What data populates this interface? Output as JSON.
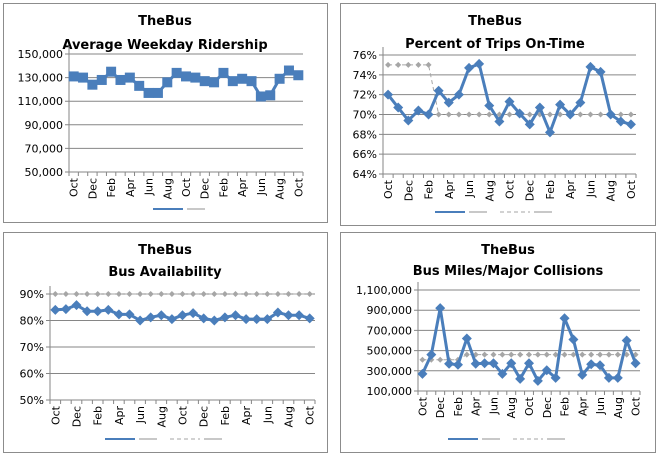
{
  "chart_data": [
    {
      "type": "line",
      "title": [
        "TheBus",
        "Average Weekday Ridership"
      ],
      "x": [
        "Oct",
        "Nov",
        "Dec",
        "Jan",
        "Feb",
        "Mar",
        "Apr",
        "May",
        "Jun",
        "Jul",
        "Aug",
        "Sep",
        "Oct",
        "Nov",
        "Dec",
        "Jan",
        "Feb",
        "Mar",
        "Apr",
        "May",
        "Jun",
        "Jul",
        "Aug",
        "Sep",
        "Oct"
      ],
      "xtick_labels": [
        "Oct",
        "Dec",
        "Feb",
        "Apr",
        "Jun",
        "Aug",
        "Oct",
        "Dec",
        "Feb",
        "Apr",
        "Jun",
        "Aug",
        "Oct"
      ],
      "ylim": [
        50000,
        150000
      ],
      "yticks": [
        50000,
        70000,
        90000,
        110000,
        130000,
        150000
      ],
      "ytick_labels": [
        "50,000",
        "70,000",
        "90,000",
        "110,000",
        "130,000",
        "150,000"
      ],
      "grid": true,
      "legend": "bottom",
      "series": [
        {
          "values": [
            131000,
            130000,
            124000,
            128000,
            135000,
            128000,
            130000,
            123000,
            117000,
            117000,
            126000,
            134000,
            131000,
            130000,
            127000,
            126000,
            134000,
            127000,
            129000,
            127000,
            114000,
            115000,
            129000,
            136000,
            132000
          ],
          "color": "#4a7ebb",
          "marker": "square"
        }
      ]
    },
    {
      "type": "line",
      "title": [
        "TheBus",
        "Percent of Trips On-Time"
      ],
      "x": [
        "Oct",
        "Nov",
        "Dec",
        "Jan",
        "Feb",
        "Mar",
        "Apr",
        "May",
        "Jun",
        "Jul",
        "Aug",
        "Sep",
        "Oct",
        "Nov",
        "Dec",
        "Jan",
        "Feb",
        "Mar",
        "Apr",
        "May",
        "Jun",
        "Jul",
        "Aug",
        "Sep",
        "Oct"
      ],
      "xtick_labels": [
        "Oct",
        "Dec",
        "Feb",
        "Apr",
        "Jun",
        "Aug",
        "Oct",
        "Dec",
        "Feb",
        "Apr",
        "Jun",
        "Aug",
        "Oct"
      ],
      "ylim": [
        64,
        76
      ],
      "yticks": [
        64,
        66,
        68,
        70,
        72,
        74,
        76
      ],
      "ytick_labels": [
        "64%",
        "66%",
        "68%",
        "70%",
        "72%",
        "74%",
        "76%"
      ],
      "grid": true,
      "legend": "bottom",
      "series": [
        {
          "values": [
            72.0,
            70.7,
            69.4,
            70.4,
            70.0,
            72.4,
            71.2,
            72.0,
            74.7,
            75.1,
            70.9,
            69.3,
            71.3,
            70.1,
            69.0,
            70.7,
            68.2,
            71.0,
            70.0,
            71.2,
            74.8,
            74.3,
            70.0,
            69.3,
            69.0
          ],
          "color": "#4a7ebb",
          "marker": "diamond"
        },
        {
          "values": [
            75,
            75,
            75,
            75,
            75,
            70,
            70,
            70,
            70,
            70,
            70,
            70,
            70,
            70,
            70,
            70,
            70,
            70,
            70,
            70,
            70,
            70,
            70,
            70,
            70
          ],
          "color": "#a6a6a6",
          "marker": "diamond",
          "dashed": true
        }
      ]
    },
    {
      "type": "line",
      "title": [
        "TheBus",
        "Bus Availability"
      ],
      "x": [
        "Oct",
        "Nov",
        "Dec",
        "Jan",
        "Feb",
        "Mar",
        "Apr",
        "May",
        "Jun",
        "Jul",
        "Aug",
        "Sep",
        "Oct",
        "Nov",
        "Dec",
        "Jan",
        "Feb",
        "Mar",
        "Apr",
        "May",
        "Jun",
        "Jul",
        "Aug",
        "Sep",
        "Oct"
      ],
      "xtick_labels": [
        "Oct",
        "Dec",
        "Feb",
        "Apr",
        "Jun",
        "Aug",
        "Oct",
        "Dec",
        "Feb",
        "Apr",
        "Jun",
        "Aug",
        "Oct"
      ],
      "ylim": [
        50,
        90
      ],
      "yticks": [
        50,
        60,
        70,
        80,
        90
      ],
      "ytick_labels": [
        "50%",
        "60%",
        "70%",
        "80%",
        "90%"
      ],
      "grid": true,
      "legend": "bottom",
      "series": [
        {
          "values": [
            84,
            84.3,
            85.8,
            83.5,
            83.5,
            84,
            82.3,
            82.3,
            80,
            81.2,
            82,
            80.5,
            82,
            82.8,
            80.8,
            80,
            81.2,
            82,
            80.5,
            80.5,
            80.5,
            83,
            82,
            82,
            80.8
          ],
          "color": "#4a7ebb",
          "marker": "diamond"
        },
        {
          "values": [
            90,
            90,
            90,
            90,
            90,
            90,
            90,
            90,
            90,
            90,
            90,
            90,
            90,
            90,
            90,
            90,
            90,
            90,
            90,
            90,
            90,
            90,
            90,
            90,
            90
          ],
          "color": "#a6a6a6",
          "marker": "diamond",
          "dashed": true
        }
      ]
    },
    {
      "type": "line",
      "title": [
        "TheBus",
        "Bus Miles/Major Collisions"
      ],
      "x": [
        "Oct",
        "Nov",
        "Dec",
        "Jan",
        "Feb",
        "Mar",
        "Apr",
        "May",
        "Jun",
        "Jul",
        "Aug",
        "Sep",
        "Oct",
        "Nov",
        "Dec",
        "Jan",
        "Feb",
        "Mar",
        "Apr",
        "May",
        "Jun",
        "Jul",
        "Aug",
        "Sep",
        "Oct"
      ],
      "xtick_labels": [
        "Oct",
        "Dec",
        "Feb",
        "Apr",
        "Jun",
        "Aug",
        "Oct",
        "Dec",
        "Feb",
        "Apr",
        "Jun",
        "Aug",
        "Oct"
      ],
      "ylim": [
        100000,
        1100000
      ],
      "yticks": [
        100000,
        300000,
        500000,
        700000,
        900000,
        1100000
      ],
      "ytick_labels": [
        "100,000",
        "300,000",
        "500,000",
        "700,000",
        "900,000",
        "1,100,000"
      ],
      "grid": true,
      "legend": "bottom",
      "series": [
        {
          "values": [
            270000,
            460000,
            920000,
            370000,
            360000,
            620000,
            370000,
            375000,
            375000,
            270000,
            375000,
            220000,
            375000,
            200000,
            305000,
            230000,
            820000,
            610000,
            260000,
            365000,
            355000,
            230000,
            230000,
            600000,
            375000
          ],
          "color": "#4a7ebb",
          "marker": "diamond"
        },
        {
          "values": [
            410000,
            410000,
            410000,
            410000,
            410000,
            460000,
            460000,
            460000,
            460000,
            460000,
            460000,
            460000,
            460000,
            460000,
            460000,
            460000,
            460000,
            460000,
            460000,
            460000,
            460000,
            460000,
            460000,
            460000,
            460000
          ],
          "color": "#a6a6a6",
          "marker": "diamond",
          "dashed": true
        }
      ]
    }
  ]
}
